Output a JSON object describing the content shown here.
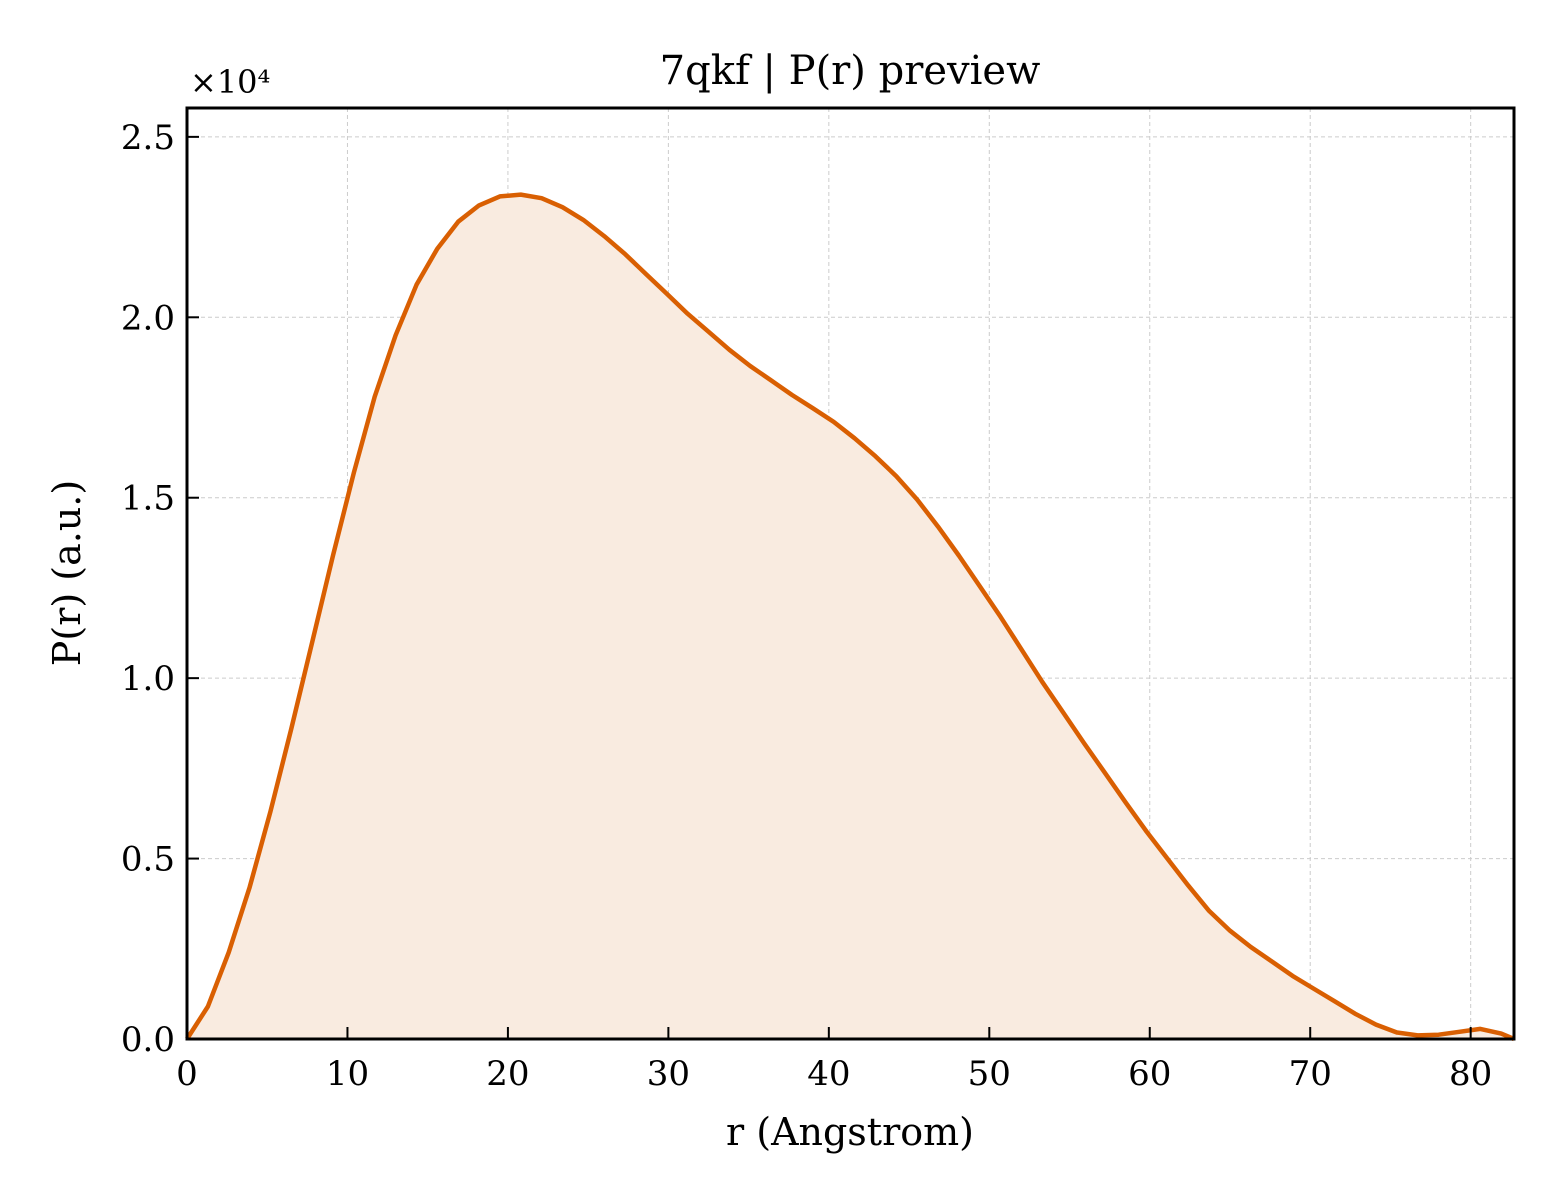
{
  "chart_data": {
    "type": "area",
    "title": "7qkf | P(r) preview",
    "xlabel": "r (Angstrom)",
    "ylabel": "P(r) (a.u.)",
    "y_offset_label": "×10⁴",
    "xlim": [
      0,
      82.7
    ],
    "ylim": [
      0,
      2.58
    ],
    "xticks": [
      0,
      10,
      20,
      30,
      40,
      50,
      60,
      70,
      80
    ],
    "xtick_labels": [
      "0",
      "10",
      "20",
      "30",
      "40",
      "50",
      "60",
      "70",
      "80"
    ],
    "yticks": [
      0,
      0.5,
      1.0,
      1.5,
      2.0,
      2.5
    ],
    "ytick_labels": [
      "0.0",
      "0.5",
      "1.0",
      "1.5",
      "2.0",
      "2.5"
    ],
    "grid": true,
    "colors": {
      "line": "#d95f02",
      "fill": "#f9ebe0"
    },
    "series": [
      {
        "x": [
          0,
          1.3,
          2.6,
          3.9,
          5.2,
          6.5,
          7.8,
          9.1,
          10.4,
          11.7,
          13.0,
          14.3,
          15.6,
          16.9,
          18.2,
          19.5,
          20.8,
          22.1,
          23.4,
          24.7,
          26.0,
          27.3,
          28.6,
          29.9,
          31.2,
          32.5,
          33.8,
          35.1,
          36.4,
          37.7,
          39.0,
          40.3,
          41.6,
          42.9,
          44.2,
          45.5,
          46.8,
          48.1,
          49.4,
          50.7,
          52.0,
          53.3,
          54.6,
          55.9,
          57.2,
          58.5,
          59.8,
          61.1,
          62.4,
          63.7,
          65.0,
          66.3,
          67.6,
          68.9,
          70.2,
          71.5,
          72.8,
          74.1,
          75.4,
          76.7,
          78.0,
          79.3,
          80.6,
          81.9,
          82.7
        ],
        "y": [
          0,
          0.09,
          0.24,
          0.42,
          0.63,
          0.86,
          1.1,
          1.34,
          1.57,
          1.78,
          1.95,
          2.09,
          2.19,
          2.265,
          2.31,
          2.335,
          2.34,
          2.33,
          2.305,
          2.27,
          2.225,
          2.175,
          2.12,
          2.065,
          2.01,
          1.96,
          1.91,
          1.865,
          1.825,
          1.785,
          1.748,
          1.71,
          1.665,
          1.615,
          1.56,
          1.495,
          1.42,
          1.34,
          1.255,
          1.17,
          1.08,
          0.99,
          0.905,
          0.82,
          0.738,
          0.655,
          0.575,
          0.5,
          0.425,
          0.355,
          0.3,
          0.255,
          0.215,
          0.175,
          0.14,
          0.105,
          0.07,
          0.04,
          0.018,
          0.01,
          0.012,
          0.02,
          0.028,
          0.015,
          0.0
        ]
      }
    ]
  }
}
